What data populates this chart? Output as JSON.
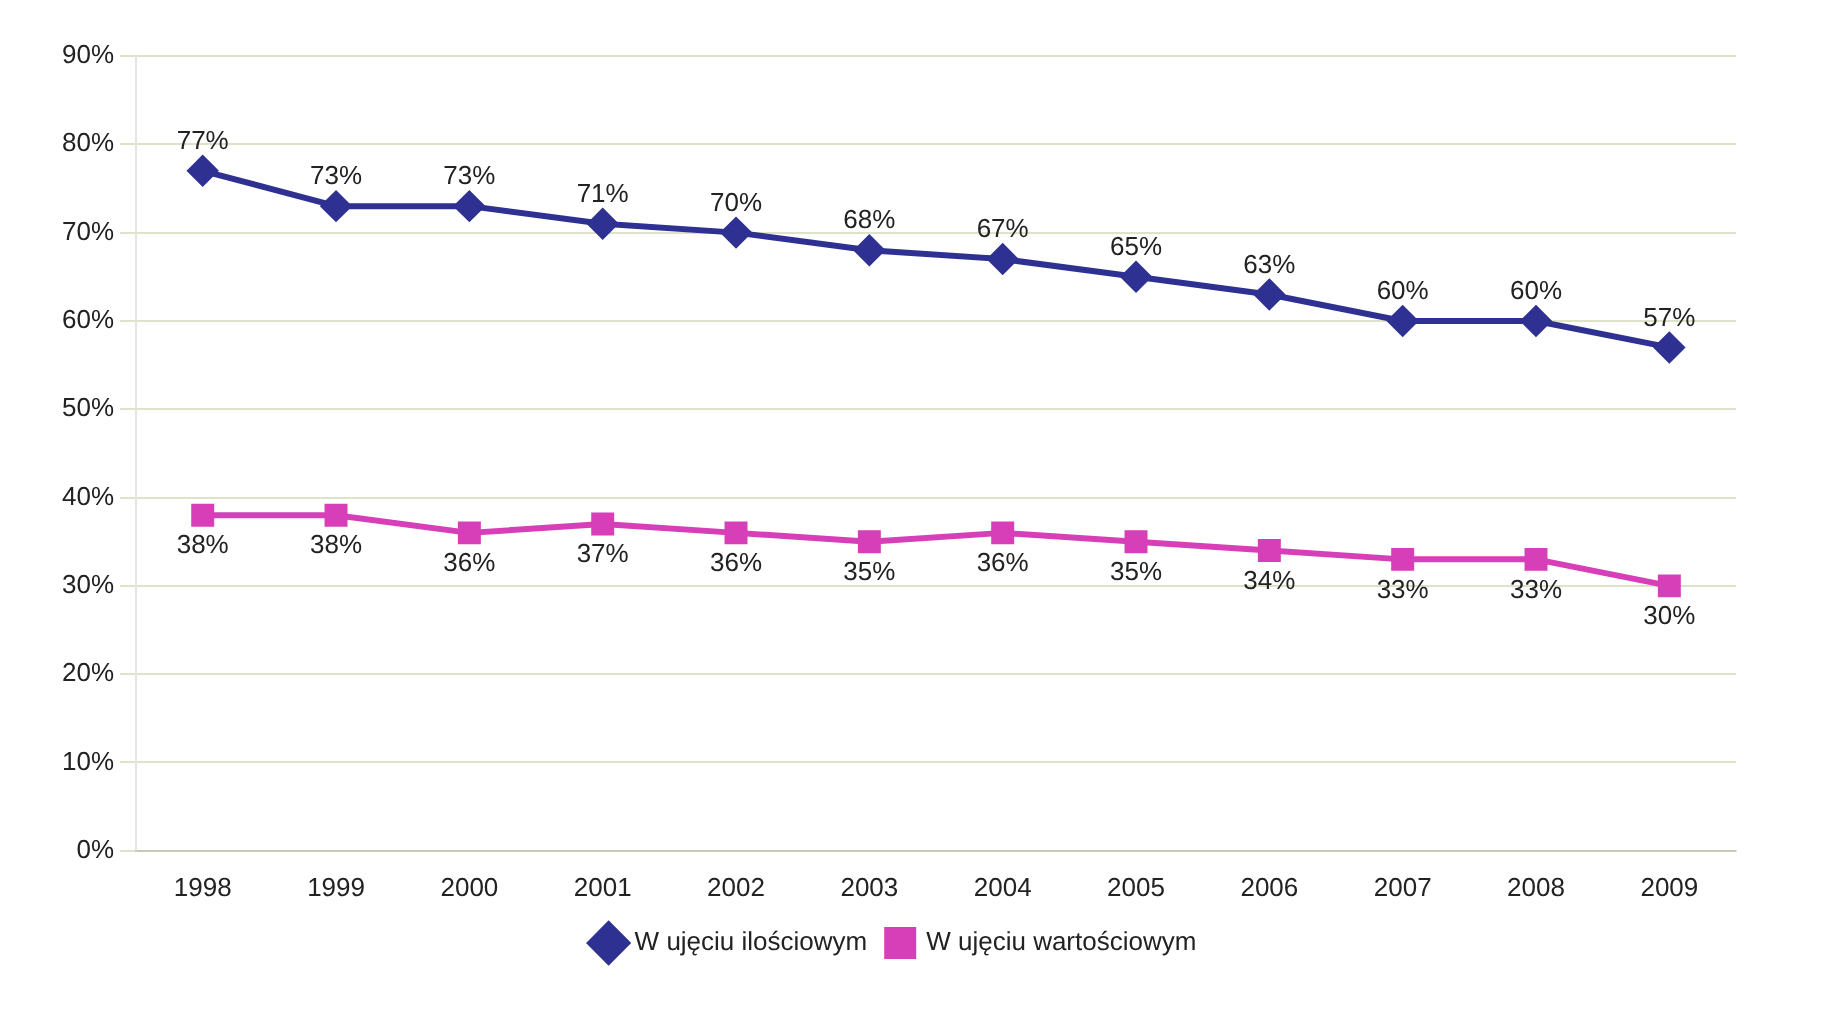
{
  "chart_data": {
    "type": "line",
    "categories": [
      "1998",
      "1999",
      "2000",
      "2001",
      "2002",
      "2003",
      "2004",
      "2005",
      "2006",
      "2007",
      "2008",
      "2009"
    ],
    "series": [
      {
        "name": "W ujęciu ilościowym",
        "color": "#2e3192",
        "marker": "diamond",
        "values": [
          77,
          73,
          73,
          71,
          70,
          68,
          67,
          65,
          63,
          60,
          60,
          57
        ],
        "value_labels": [
          "77%",
          "73%",
          "73%",
          "71%",
          "70%",
          "68%",
          "67%",
          "65%",
          "63%",
          "60%",
          "60%",
          "57%"
        ]
      },
      {
        "name": "W ujęciu wartościowym",
        "color": "#d63fb8",
        "marker": "square",
        "values": [
          38,
          38,
          36,
          37,
          36,
          35,
          36,
          35,
          34,
          33,
          33,
          30
        ],
        "value_labels": [
          "38%",
          "38%",
          "36%",
          "37%",
          "36%",
          "35%",
          "36%",
          "35%",
          "34%",
          "33%",
          "33%",
          "30%"
        ]
      }
    ],
    "ylim": [
      0,
      90
    ],
    "yticks": [
      {
        "value": 0,
        "label": "0%"
      },
      {
        "value": 10,
        "label": "10%"
      },
      {
        "value": 20,
        "label": "20%"
      },
      {
        "value": 30,
        "label": "30%"
      },
      {
        "value": 40,
        "label": "40%"
      },
      {
        "value": 50,
        "label": "50%"
      },
      {
        "value": 60,
        "label": "60%"
      },
      {
        "value": 70,
        "label": "70%"
      },
      {
        "value": 80,
        "label": "80%"
      },
      {
        "value": 90,
        "label": "90%"
      }
    ],
    "grid": "y",
    "legend": "bottom",
    "line_style": "solid"
  }
}
